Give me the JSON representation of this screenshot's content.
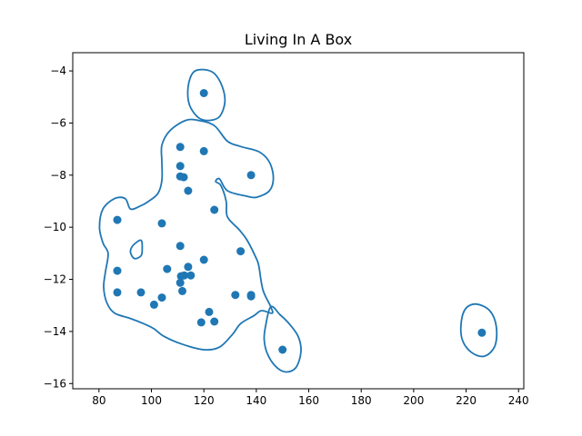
{
  "chart_data": {
    "type": "scatter",
    "title": "Living In A Box",
    "xlabel": "",
    "ylabel": "",
    "xlim": [
      70,
      242
    ],
    "ylim": [
      -16.2,
      -3.3
    ],
    "x_ticks": [
      80,
      100,
      120,
      140,
      160,
      180,
      200,
      220,
      240
    ],
    "y_ticks": [
      -4,
      -6,
      -8,
      -10,
      -12,
      -14,
      -16
    ],
    "x_tick_labels": [
      "80",
      "100",
      "120",
      "140",
      "160",
      "180",
      "200",
      "220",
      "240"
    ],
    "y_tick_labels": [
      "−4",
      "−6",
      "−8",
      "−10",
      "−12",
      "−14",
      "−16"
    ],
    "grid": false,
    "colors": {
      "series": "#1f77b4"
    },
    "points": [
      {
        "x": 120,
        "y": -4.85
      },
      {
        "x": 111,
        "y": -6.92
      },
      {
        "x": 120,
        "y": -7.08
      },
      {
        "x": 111,
        "y": -7.65
      },
      {
        "x": 111,
        "y": -8.05
      },
      {
        "x": 112.3,
        "y": -8.08
      },
      {
        "x": 138,
        "y": -8.0
      },
      {
        "x": 114,
        "y": -8.6
      },
      {
        "x": 124,
        "y": -9.33
      },
      {
        "x": 87,
        "y": -9.72
      },
      {
        "x": 104,
        "y": -9.85
      },
      {
        "x": 111,
        "y": -10.72
      },
      {
        "x": 134,
        "y": -10.92
      },
      {
        "x": 120,
        "y": -11.25
      },
      {
        "x": 87,
        "y": -11.67
      },
      {
        "x": 106,
        "y": -11.6
      },
      {
        "x": 114,
        "y": -11.52
      },
      {
        "x": 111.3,
        "y": -11.88
      },
      {
        "x": 112.5,
        "y": -11.85
      },
      {
        "x": 115,
        "y": -11.85
      },
      {
        "x": 111,
        "y": -12.13
      },
      {
        "x": 87,
        "y": -12.5
      },
      {
        "x": 96,
        "y": -12.5
      },
      {
        "x": 111.8,
        "y": -12.45
      },
      {
        "x": 104,
        "y": -12.7
      },
      {
        "x": 132,
        "y": -12.6
      },
      {
        "x": 138,
        "y": -12.6
      },
      {
        "x": 138,
        "y": -12.65
      },
      {
        "x": 101,
        "y": -12.97
      },
      {
        "x": 122,
        "y": -13.25
      },
      {
        "x": 119,
        "y": -13.65
      },
      {
        "x": 124,
        "y": -13.62
      },
      {
        "x": 226,
        "y": -14.05
      },
      {
        "x": 150,
        "y": -14.7
      }
    ],
    "contours": [
      [
        [
          92,
          -9.3
        ],
        [
          90,
          -8.9
        ],
        [
          86,
          -8.9
        ],
        [
          81.5,
          -9.3
        ],
        [
          80.2,
          -10.0
        ],
        [
          81.5,
          -10.6
        ],
        [
          83.5,
          -11.0
        ],
        [
          82.5,
          -11.7
        ],
        [
          81.8,
          -12.3
        ],
        [
          83,
          -12.9
        ],
        [
          86,
          -13.3
        ],
        [
          92,
          -13.5
        ],
        [
          97,
          -13.7
        ],
        [
          101,
          -13.9
        ],
        [
          105,
          -14.2
        ],
        [
          112,
          -14.5
        ],
        [
          120,
          -14.7
        ],
        [
          126,
          -14.6
        ],
        [
          131,
          -14.1
        ],
        [
          134,
          -13.7
        ],
        [
          139,
          -13.4
        ],
        [
          142,
          -13.2
        ],
        [
          146,
          -13.3
        ],
        [
          145.5,
          -13.05
        ],
        [
          142.5,
          -12.4
        ],
        [
          141,
          -11.5
        ],
        [
          140,
          -11.2
        ],
        [
          136.5,
          -10.5
        ],
        [
          133.5,
          -10.1
        ],
        [
          129,
          -9.6
        ],
        [
          128.5,
          -9.0
        ],
        [
          126.5,
          -8.4
        ],
        [
          124.5,
          -8.25
        ],
        [
          126,
          -8.15
        ],
        [
          129,
          -8.6
        ],
        [
          136,
          -8.8
        ],
        [
          140,
          -8.85
        ],
        [
          145,
          -8.6
        ],
        [
          146.5,
          -8.1
        ],
        [
          145,
          -7.5
        ],
        [
          141,
          -7.1
        ],
        [
          134,
          -6.9
        ],
        [
          129,
          -6.7
        ],
        [
          124,
          -6.1
        ],
        [
          118,
          -5.9
        ],
        [
          113,
          -5.9
        ],
        [
          107,
          -6.3
        ],
        [
          104,
          -6.85
        ],
        [
          104,
          -7.5
        ],
        [
          104,
          -8.2
        ],
        [
          102.5,
          -8.7
        ],
        [
          99,
          -9.0
        ],
        [
          95.5,
          -9.2
        ],
        [
          92,
          -9.3
        ]
      ],
      [
        [
          145.5,
          -13.05
        ],
        [
          149,
          -13.35
        ],
        [
          152.5,
          -13.7
        ],
        [
          156,
          -14.2
        ],
        [
          157,
          -14.8
        ],
        [
          155,
          -15.4
        ],
        [
          151,
          -15.55
        ],
        [
          147,
          -15.3
        ],
        [
          144,
          -14.8
        ],
        [
          143,
          -14.3
        ],
        [
          143.5,
          -13.8
        ],
        [
          145.5,
          -13.05
        ]
      ],
      [
        [
          96,
          -10.5
        ],
        [
          93,
          -10.7
        ],
        [
          92,
          -10.95
        ],
        [
          93.5,
          -11.2
        ],
        [
          96,
          -11.1
        ],
        [
          96.5,
          -10.85
        ],
        [
          96,
          -10.5
        ]
      ],
      [
        [
          120,
          -3.95
        ],
        [
          124,
          -4.1
        ],
        [
          127,
          -4.6
        ],
        [
          128,
          -5.2
        ],
        [
          126,
          -5.75
        ],
        [
          122,
          -5.9
        ],
        [
          118,
          -5.8
        ],
        [
          114.5,
          -5.3
        ],
        [
          114,
          -4.6
        ],
        [
          116,
          -4.05
        ],
        [
          120,
          -3.95
        ]
      ],
      [
        [
          224,
          -12.95
        ],
        [
          229,
          -13.2
        ],
        [
          231.5,
          -13.8
        ],
        [
          231,
          -14.55
        ],
        [
          227,
          -14.95
        ],
        [
          222,
          -14.8
        ],
        [
          218.5,
          -14.3
        ],
        [
          218.2,
          -13.6
        ],
        [
          220,
          -13.1
        ],
        [
          224,
          -12.95
        ]
      ]
    ]
  }
}
